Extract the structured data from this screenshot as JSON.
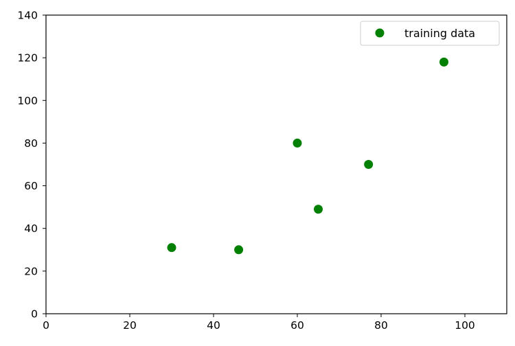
{
  "chart_data": {
    "type": "scatter",
    "title": "",
    "xlabel": "",
    "ylabel": "",
    "xlim": [
      0,
      110
    ],
    "ylim": [
      0,
      140
    ],
    "xticks": [
      0,
      20,
      40,
      60,
      80,
      100
    ],
    "yticks": [
      0,
      20,
      40,
      60,
      80,
      100,
      120,
      140
    ],
    "grid": false,
    "legend_position": "top-right",
    "series": [
      {
        "name": "training data",
        "color": "#008000",
        "marker": "circle",
        "x": [
          30,
          46,
          60,
          65,
          77,
          95
        ],
        "y": [
          31,
          30,
          80,
          49,
          70,
          118
        ]
      }
    ]
  }
}
